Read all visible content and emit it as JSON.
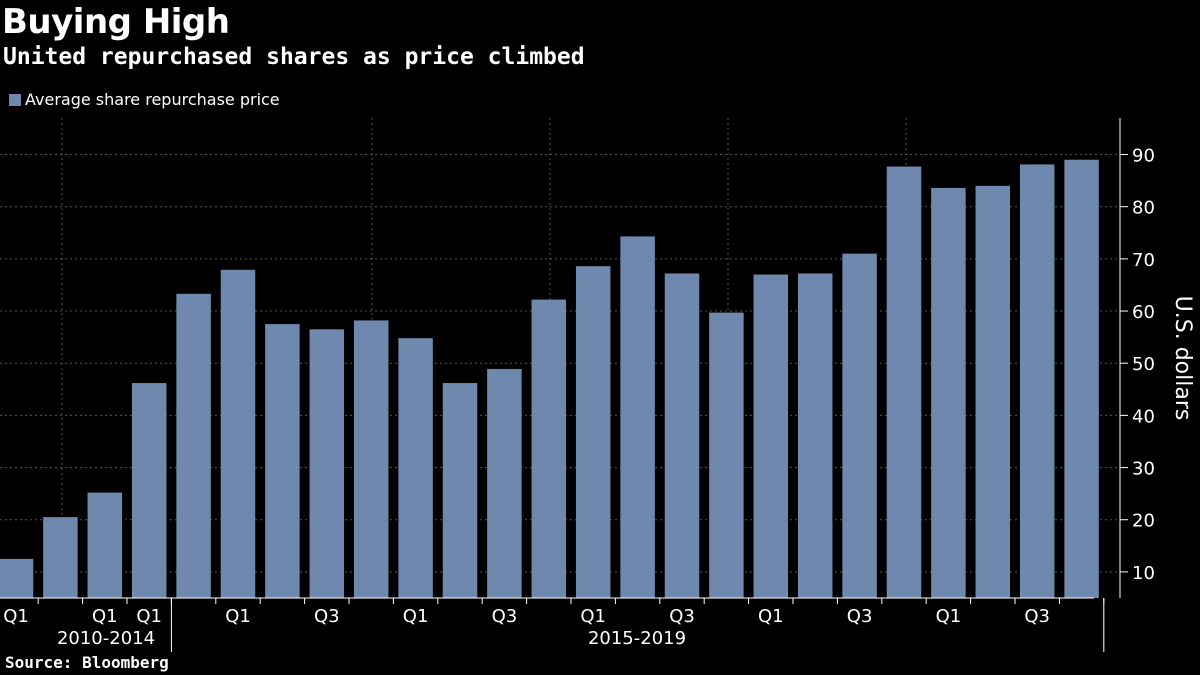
{
  "title": "Buying High",
  "subtitle": "United repurchased shares as price climbed",
  "source": "Source: Bloomberg",
  "colors": {
    "background": "#000000",
    "bar": "#6f88ad",
    "grid": "#555555",
    "text": "#ffffff"
  },
  "chart_data": {
    "type": "bar",
    "legend": "Average share repurchase price",
    "ylabel": "U.S. dollars",
    "ylim": [
      5,
      97
    ],
    "yticks": [
      10,
      20,
      30,
      40,
      50,
      60,
      70,
      80,
      90
    ],
    "values": [
      12.5,
      20.5,
      25.2,
      46.2,
      63.3,
      67.9,
      57.5,
      56.5,
      58.2,
      54.8,
      46.2,
      48.9,
      62.2,
      68.6,
      74.3,
      67.2,
      59.7,
      67.0,
      67.2,
      71.0,
      87.7,
      83.6,
      84.0,
      88.1,
      89.0
    ],
    "x_labels": [
      {
        "index": 0,
        "label": "Q1"
      },
      {
        "index": 2,
        "label": "Q1"
      },
      {
        "index": 3,
        "label": "Q1"
      },
      {
        "index": 5,
        "label": "Q1"
      },
      {
        "index": 7,
        "label": "Q3"
      },
      {
        "index": 9,
        "label": "Q1"
      },
      {
        "index": 11,
        "label": "Q3"
      },
      {
        "index": 13,
        "label": "Q1"
      },
      {
        "index": 15,
        "label": "Q3"
      },
      {
        "index": 17,
        "label": "Q1"
      },
      {
        "index": 19,
        "label": "Q3"
      },
      {
        "index": 21,
        "label": "Q1"
      },
      {
        "index": 23,
        "label": "Q3"
      }
    ],
    "groups": [
      {
        "label": "2010-2014",
        "start": 0,
        "end": 3
      },
      {
        "label": "2015-2019",
        "start": 4,
        "end": 24
      }
    ]
  }
}
